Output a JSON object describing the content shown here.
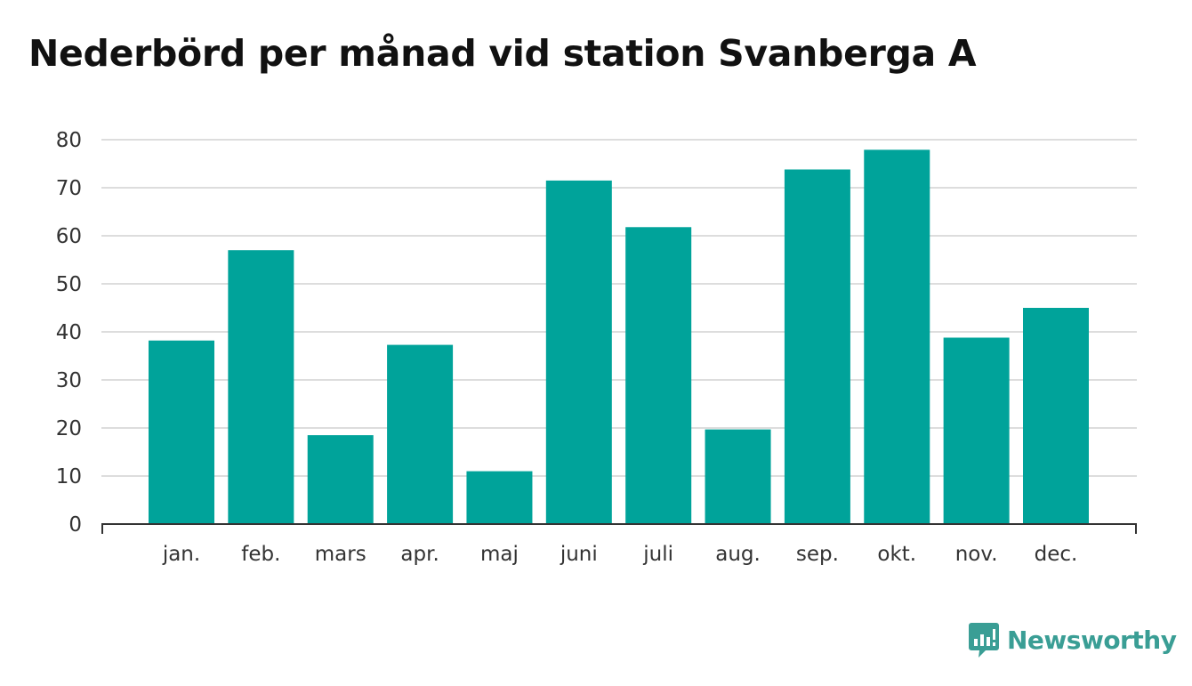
{
  "title": "Nederbörd per månad vid station Svanberga A",
  "brand": {
    "name": "Newsworthy",
    "icon": "newsworthy-logo-icon"
  },
  "colors": {
    "bar": "#00a39a",
    "grid": "#dddddd",
    "axis": "#333333",
    "brand": "#3a9e95"
  },
  "chart_data": {
    "type": "bar",
    "title": "Nederbörd per månad vid station Svanberga A",
    "xlabel": "",
    "ylabel": "",
    "categories": [
      "jan.",
      "feb.",
      "mars",
      "apr.",
      "maj",
      "juni",
      "juli",
      "aug.",
      "sep.",
      "okt.",
      "nov.",
      "dec."
    ],
    "values": [
      38.2,
      57.0,
      18.5,
      37.3,
      11.0,
      71.5,
      61.8,
      19.7,
      73.8,
      77.9,
      38.8,
      45.0
    ],
    "ylim": [
      0,
      80
    ],
    "yticks": [
      "0",
      "10",
      "20",
      "30",
      "40",
      "50",
      "60",
      "70",
      "80"
    ],
    "grid": true,
    "legend": "none"
  }
}
